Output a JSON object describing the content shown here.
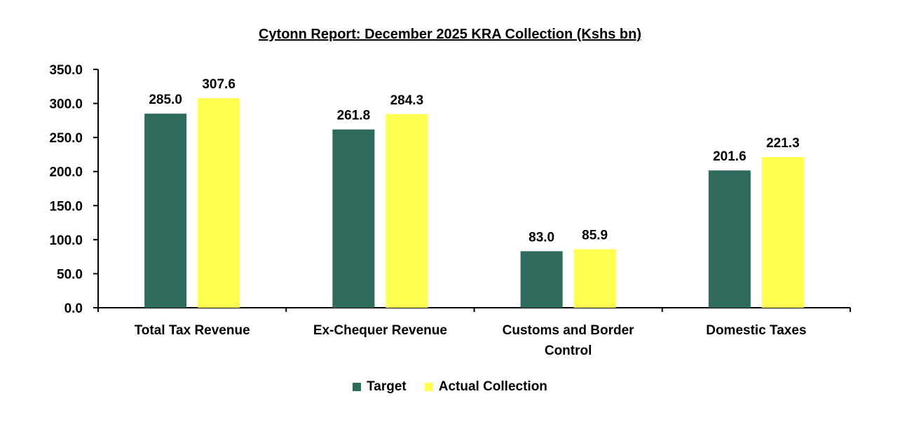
{
  "chart_data": {
    "type": "bar",
    "title": "Cytonn Report: December 2025 KRA Collection (Kshs bn)",
    "xlabel": "",
    "ylabel": "",
    "ylim": [
      0,
      350
    ],
    "yticks": [
      0,
      50,
      100,
      150,
      200,
      250,
      300,
      350
    ],
    "ytick_labels": [
      "0.0",
      "50.0",
      "100.0",
      "150.0",
      "200.0",
      "250.0",
      "300.0",
      "350.0"
    ],
    "categories": [
      [
        "Total Tax Revenue"
      ],
      [
        "Ex-Chequer Revenue"
      ],
      [
        "Customs and Border",
        "Control"
      ],
      [
        "Domestic Taxes"
      ]
    ],
    "series": [
      {
        "name": "Target",
        "color": "#2E6B5C",
        "values": [
          285.0,
          261.8,
          83.0,
          201.6
        ],
        "labels": [
          "285.0",
          "261.8",
          "83.0",
          "201.6"
        ]
      },
      {
        "name": "Actual Collection",
        "color": "#FFFF4F",
        "values": [
          307.6,
          284.3,
          85.9,
          221.3
        ],
        "labels": [
          "307.6",
          "284.3",
          "85.9",
          "221.3"
        ]
      }
    ],
    "grid": false,
    "legend_position": "bottom"
  }
}
